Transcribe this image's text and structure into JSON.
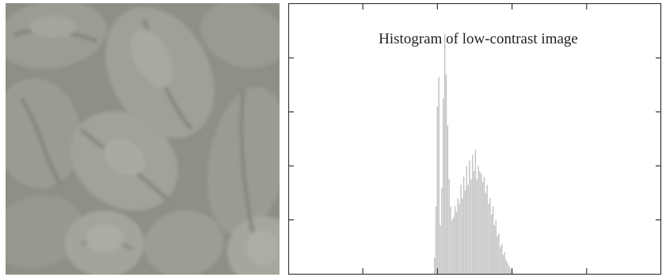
{
  "image_panel": {
    "content": "low-contrast grayscale photograph of coffee beans",
    "colors": {
      "background": "#8f8f87",
      "bean": "#9d9d95",
      "highlight": "#aaaaa2",
      "shadow": "#7e7e77"
    }
  },
  "chart_data": {
    "type": "bar",
    "title": "Histogram of low-contrast image",
    "xlabel": "",
    "ylabel": "",
    "xlim": [
      0,
      255
    ],
    "ylim": [
      0,
      1
    ],
    "grid": false,
    "x_ticks_count": 4,
    "y_ticks_count": 4,
    "bar_color": "#c3c3c3",
    "x": [
      100,
      101,
      102,
      103,
      104,
      105,
      106,
      107,
      108,
      109,
      110,
      111,
      112,
      113,
      114,
      115,
      116,
      117,
      118,
      119,
      120,
      121,
      122,
      123,
      124,
      125,
      126,
      127,
      128,
      129,
      130,
      131,
      132,
      133,
      134,
      135,
      136,
      137,
      138,
      139,
      140,
      141,
      142,
      143,
      144,
      145,
      146,
      147,
      148,
      149,
      150,
      151,
      152,
      153
    ],
    "values": [
      0.06,
      0.25,
      0.62,
      0.73,
      0.18,
      0.32,
      0.65,
      0.89,
      0.74,
      0.55,
      0.35,
      0.25,
      0.2,
      0.21,
      0.25,
      0.23,
      0.28,
      0.26,
      0.33,
      0.28,
      0.36,
      0.31,
      0.4,
      0.33,
      0.42,
      0.35,
      0.44,
      0.38,
      0.46,
      0.35,
      0.4,
      0.38,
      0.37,
      0.34,
      0.36,
      0.3,
      0.33,
      0.26,
      0.28,
      0.22,
      0.25,
      0.18,
      0.2,
      0.14,
      0.15,
      0.1,
      0.11,
      0.07,
      0.08,
      0.05,
      0.04,
      0.03,
      0.02,
      0.01
    ]
  }
}
